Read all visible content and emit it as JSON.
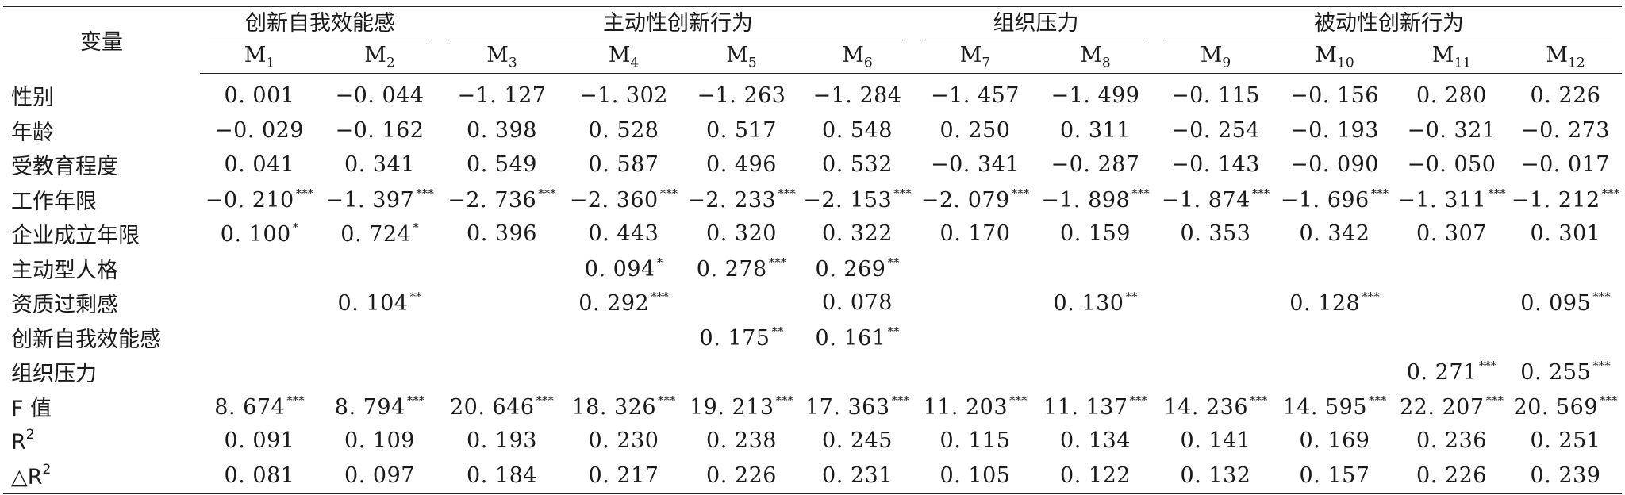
{
  "table": {
    "corner": "变量",
    "groups": [
      {
        "label": "创新自我效能感",
        "span": 2
      },
      {
        "label": "主动性创新行为",
        "span": 4
      },
      {
        "label": "组织压力",
        "span": 2
      },
      {
        "label": "被动性创新行为",
        "span": 4
      }
    ],
    "models": [
      {
        "base": "M",
        "sub": "1"
      },
      {
        "base": "M",
        "sub": "2"
      },
      {
        "base": "M",
        "sub": "3"
      },
      {
        "base": "M",
        "sub": "4"
      },
      {
        "base": "M",
        "sub": "5"
      },
      {
        "base": "M",
        "sub": "6"
      },
      {
        "base": "M",
        "sub": "7"
      },
      {
        "base": "M",
        "sub": "8"
      },
      {
        "base": "M",
        "sub": "9"
      },
      {
        "base": "M",
        "sub": "10"
      },
      {
        "base": "M",
        "sub": "11"
      },
      {
        "base": "M",
        "sub": "12"
      }
    ],
    "rows": [
      {
        "label": "性别",
        "sup": "",
        "cells": [
          {
            "v": "0. 001",
            "s": ""
          },
          {
            "v": "−0. 044",
            "s": ""
          },
          {
            "v": "−1. 127",
            "s": ""
          },
          {
            "v": "−1. 302",
            "s": ""
          },
          {
            "v": "−1. 263",
            "s": ""
          },
          {
            "v": "−1. 284",
            "s": ""
          },
          {
            "v": "−1. 457",
            "s": ""
          },
          {
            "v": "−1. 499",
            "s": ""
          },
          {
            "v": "−0. 115",
            "s": ""
          },
          {
            "v": "−0. 156",
            "s": ""
          },
          {
            "v": "0. 280",
            "s": ""
          },
          {
            "v": "0. 226",
            "s": ""
          }
        ]
      },
      {
        "label": "年龄",
        "sup": "",
        "cells": [
          {
            "v": "−0. 029",
            "s": ""
          },
          {
            "v": "−0. 162",
            "s": ""
          },
          {
            "v": "0. 398",
            "s": ""
          },
          {
            "v": "0. 528",
            "s": ""
          },
          {
            "v": "0. 517",
            "s": ""
          },
          {
            "v": "0. 548",
            "s": ""
          },
          {
            "v": "0. 250",
            "s": ""
          },
          {
            "v": "0. 311",
            "s": ""
          },
          {
            "v": "−0. 254",
            "s": ""
          },
          {
            "v": "−0. 193",
            "s": ""
          },
          {
            "v": "−0. 321",
            "s": ""
          },
          {
            "v": "−0. 273",
            "s": ""
          }
        ]
      },
      {
        "label": "受教育程度",
        "sup": "",
        "cells": [
          {
            "v": "0. 041",
            "s": ""
          },
          {
            "v": "0. 341",
            "s": ""
          },
          {
            "v": "0. 549",
            "s": ""
          },
          {
            "v": "0. 587",
            "s": ""
          },
          {
            "v": "0. 496",
            "s": ""
          },
          {
            "v": "0. 532",
            "s": ""
          },
          {
            "v": "−0. 341",
            "s": ""
          },
          {
            "v": "−0. 287",
            "s": ""
          },
          {
            "v": "−0. 143",
            "s": ""
          },
          {
            "v": "−0. 090",
            "s": ""
          },
          {
            "v": "−0. 050",
            "s": ""
          },
          {
            "v": "−0. 017",
            "s": ""
          }
        ]
      },
      {
        "label": "工作年限",
        "sup": "",
        "cells": [
          {
            "v": "−0. 210",
            "s": "***"
          },
          {
            "v": "−1. 397",
            "s": "***"
          },
          {
            "v": "−2. 736",
            "s": "***"
          },
          {
            "v": "−2. 360",
            "s": "***"
          },
          {
            "v": "−2. 233",
            "s": "***"
          },
          {
            "v": "−2. 153",
            "s": "***"
          },
          {
            "v": "−2. 079",
            "s": "***"
          },
          {
            "v": "−1. 898",
            "s": "***"
          },
          {
            "v": "−1. 874",
            "s": "***"
          },
          {
            "v": "−1. 696",
            "s": "***"
          },
          {
            "v": "−1. 311",
            "s": "***"
          },
          {
            "v": "−1. 212",
            "s": "***"
          }
        ]
      },
      {
        "label": "企业成立年限",
        "sup": "",
        "cells": [
          {
            "v": "0. 100",
            "s": "*"
          },
          {
            "v": "0. 724",
            "s": "*"
          },
          {
            "v": "0. 396",
            "s": ""
          },
          {
            "v": "0. 443",
            "s": ""
          },
          {
            "v": "0. 320",
            "s": ""
          },
          {
            "v": "0. 322",
            "s": ""
          },
          {
            "v": "0. 170",
            "s": ""
          },
          {
            "v": "0. 159",
            "s": ""
          },
          {
            "v": "0. 353",
            "s": ""
          },
          {
            "v": "0. 342",
            "s": ""
          },
          {
            "v": "0. 307",
            "s": ""
          },
          {
            "v": "0. 301",
            "s": ""
          }
        ]
      },
      {
        "label": "主动型人格",
        "sup": "",
        "cells": [
          {
            "v": "",
            "s": ""
          },
          {
            "v": "",
            "s": ""
          },
          {
            "v": "",
            "s": ""
          },
          {
            "v": "0. 094",
            "s": "*"
          },
          {
            "v": "0. 278",
            "s": "***"
          },
          {
            "v": "0. 269",
            "s": "**"
          },
          {
            "v": "",
            "s": ""
          },
          {
            "v": "",
            "s": ""
          },
          {
            "v": "",
            "s": ""
          },
          {
            "v": "",
            "s": ""
          },
          {
            "v": "",
            "s": ""
          },
          {
            "v": "",
            "s": ""
          }
        ]
      },
      {
        "label": "资质过剩感",
        "sup": "",
        "cells": [
          {
            "v": "",
            "s": ""
          },
          {
            "v": "0. 104",
            "s": "**"
          },
          {
            "v": "",
            "s": ""
          },
          {
            "v": "0. 292",
            "s": "***"
          },
          {
            "v": "",
            "s": ""
          },
          {
            "v": "0. 078",
            "s": ""
          },
          {
            "v": "",
            "s": ""
          },
          {
            "v": "0. 130",
            "s": "**"
          },
          {
            "v": "",
            "s": ""
          },
          {
            "v": "0. 128",
            "s": "***"
          },
          {
            "v": "",
            "s": ""
          },
          {
            "v": "0. 095",
            "s": "***"
          }
        ]
      },
      {
        "label": "创新自我效能感",
        "sup": "",
        "cells": [
          {
            "v": "",
            "s": ""
          },
          {
            "v": "",
            "s": ""
          },
          {
            "v": "",
            "s": ""
          },
          {
            "v": "",
            "s": ""
          },
          {
            "v": "0. 175",
            "s": "**"
          },
          {
            "v": "0. 161",
            "s": "**"
          },
          {
            "v": "",
            "s": ""
          },
          {
            "v": "",
            "s": ""
          },
          {
            "v": "",
            "s": ""
          },
          {
            "v": "",
            "s": ""
          },
          {
            "v": "",
            "s": ""
          },
          {
            "v": "",
            "s": ""
          }
        ]
      },
      {
        "label": "组织压力",
        "sup": "",
        "cells": [
          {
            "v": "",
            "s": ""
          },
          {
            "v": "",
            "s": ""
          },
          {
            "v": "",
            "s": ""
          },
          {
            "v": "",
            "s": ""
          },
          {
            "v": "",
            "s": ""
          },
          {
            "v": "",
            "s": ""
          },
          {
            "v": "",
            "s": ""
          },
          {
            "v": "",
            "s": ""
          },
          {
            "v": "",
            "s": ""
          },
          {
            "v": "",
            "s": ""
          },
          {
            "v": "0. 271",
            "s": "***"
          },
          {
            "v": "0. 255",
            "s": "***"
          }
        ]
      },
      {
        "label": "F 值",
        "sup": "",
        "cells": [
          {
            "v": "8. 674",
            "s": "***"
          },
          {
            "v": "8. 794",
            "s": "***"
          },
          {
            "v": "20. 646",
            "s": "***"
          },
          {
            "v": "18. 326",
            "s": "***"
          },
          {
            "v": "19. 213",
            "s": "***"
          },
          {
            "v": "17. 363",
            "s": "***"
          },
          {
            "v": "11. 203",
            "s": "***"
          },
          {
            "v": "11. 137",
            "s": "***"
          },
          {
            "v": "14. 236",
            "s": "***"
          },
          {
            "v": "14. 595",
            "s": "***"
          },
          {
            "v": "22. 207",
            "s": "***"
          },
          {
            "v": "20. 569",
            "s": "***"
          }
        ]
      },
      {
        "label": "R",
        "sup": "2",
        "cells": [
          {
            "v": "0. 091",
            "s": ""
          },
          {
            "v": "0. 109",
            "s": ""
          },
          {
            "v": "0. 193",
            "s": ""
          },
          {
            "v": "0. 230",
            "s": ""
          },
          {
            "v": "0. 238",
            "s": ""
          },
          {
            "v": "0. 245",
            "s": ""
          },
          {
            "v": "0. 115",
            "s": ""
          },
          {
            "v": "0. 134",
            "s": ""
          },
          {
            "v": "0. 141",
            "s": ""
          },
          {
            "v": "0. 169",
            "s": ""
          },
          {
            "v": "0. 236",
            "s": ""
          },
          {
            "v": "0. 251",
            "s": ""
          }
        ]
      },
      {
        "label": "△R",
        "sup": "2",
        "cells": [
          {
            "v": "0. 081",
            "s": ""
          },
          {
            "v": "0. 097",
            "s": ""
          },
          {
            "v": "0. 184",
            "s": ""
          },
          {
            "v": "0. 217",
            "s": ""
          },
          {
            "v": "0. 226",
            "s": ""
          },
          {
            "v": "0. 231",
            "s": ""
          },
          {
            "v": "0. 105",
            "s": ""
          },
          {
            "v": "0. 122",
            "s": ""
          },
          {
            "v": "0. 132",
            "s": ""
          },
          {
            "v": "0. 157",
            "s": ""
          },
          {
            "v": "0. 226",
            "s": ""
          },
          {
            "v": "0. 239",
            "s": ""
          }
        ]
      }
    ]
  }
}
